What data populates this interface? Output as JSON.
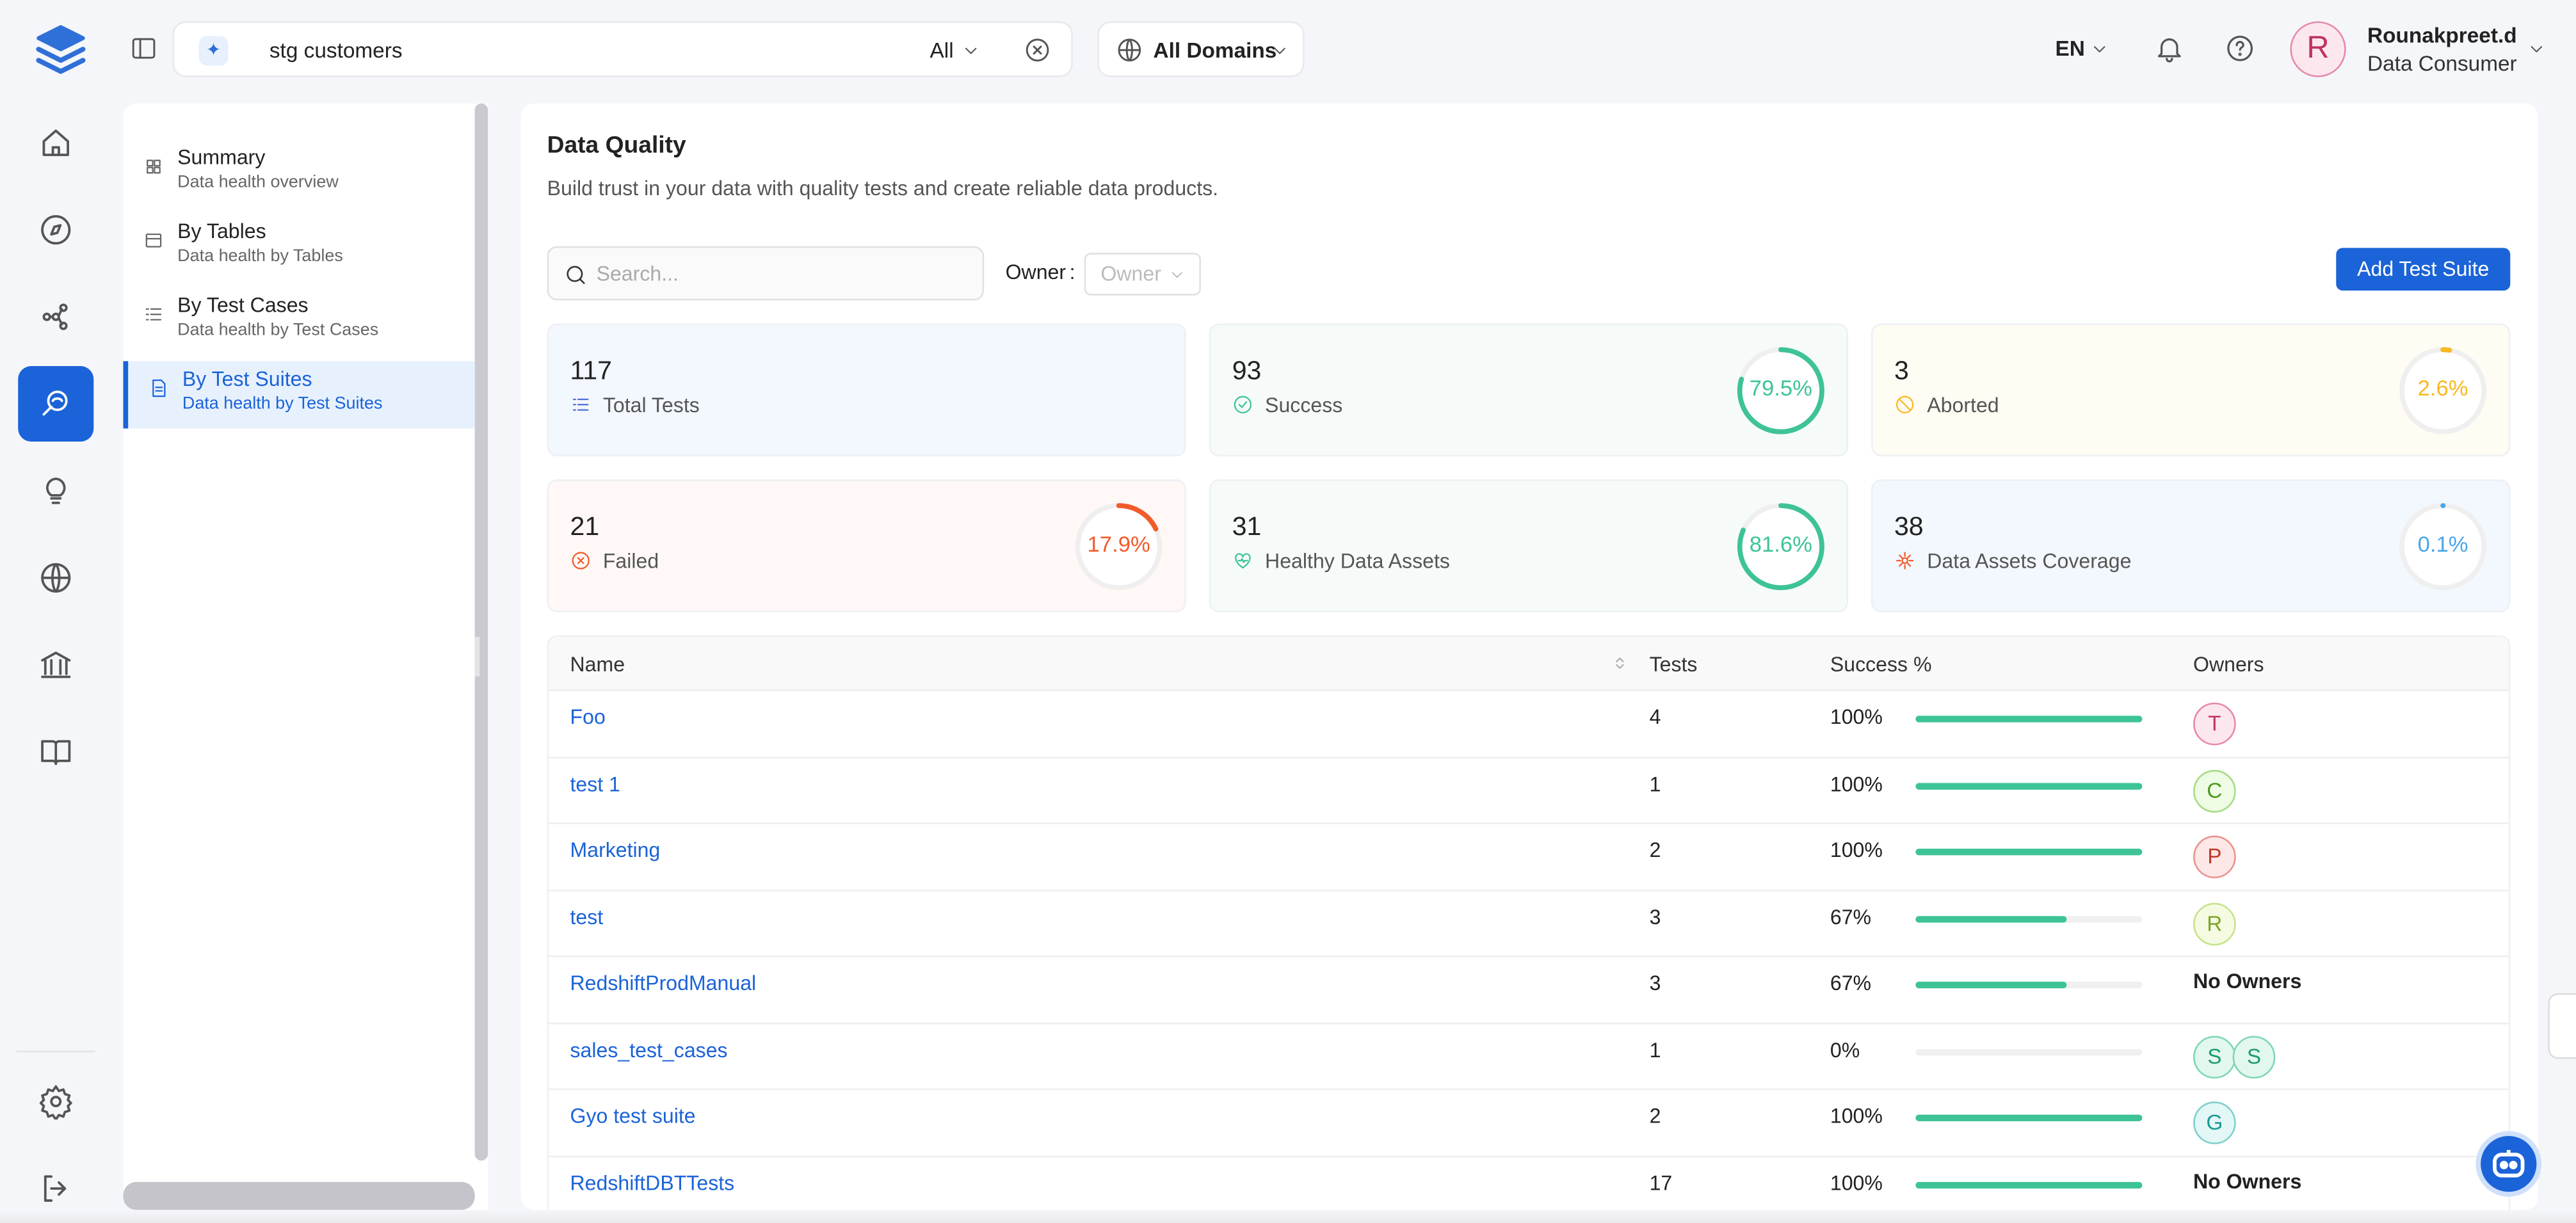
{
  "header": {
    "search": "stg customers",
    "filter": "All",
    "domain": "All Domains",
    "lang": "EN",
    "user": {
      "initial": "R",
      "name": "Rounakpreet.d",
      "role": "Data Consumer"
    }
  },
  "sidebar": [
    {
      "title": "Summary",
      "subtitle": "Data health overview"
    },
    {
      "title": "By Tables",
      "subtitle": "Data health by Tables"
    },
    {
      "title": "By Test Cases",
      "subtitle": "Data health by Test Cases"
    },
    {
      "title": "By Test Suites",
      "subtitle": "Data health by Test Suites"
    }
  ],
  "page": {
    "title": "Data Quality",
    "description": "Build trust in your data with quality tests and create reliable data products.",
    "search_placeholder": "Search...",
    "owner_label": "Owner",
    "owner_placeholder": "Owner",
    "add_button": "Add Test Suite"
  },
  "stats": [
    {
      "value": 117,
      "label": "Total Tests"
    },
    {
      "value": 93,
      "label": "Success",
      "percent": 79.5,
      "percent_label": "79.5%"
    },
    {
      "value": 3,
      "label": "Aborted",
      "percent": 2.6,
      "percent_label": "2.6%"
    },
    {
      "value": 21,
      "label": "Failed",
      "percent": 17.9,
      "percent_label": "17.9%"
    },
    {
      "value": 31,
      "label": "Healthy Data Assets",
      "percent": 81.6,
      "percent_label": "81.6%"
    },
    {
      "value": 38,
      "label": "Data Assets Coverage",
      "percent": 0.1,
      "percent_label": "0.1%"
    }
  ],
  "table": {
    "columns": [
      "Name",
      "Tests",
      "Success %",
      "Owners"
    ],
    "rows": [
      {
        "name": "Foo",
        "tests": 4,
        "success": 100,
        "success_label": "100%",
        "owners": [
          "T"
        ]
      },
      {
        "name": "test 1",
        "tests": 1,
        "success": 100,
        "success_label": "100%",
        "owners": [
          "C"
        ]
      },
      {
        "name": "Marketing",
        "tests": 2,
        "success": 100,
        "success_label": "100%",
        "owners": [
          "P"
        ]
      },
      {
        "name": "test",
        "tests": 3,
        "success": 67,
        "success_label": "67%",
        "owners": [
          "R"
        ]
      },
      {
        "name": "RedshiftProdManual",
        "tests": 3,
        "success": 67,
        "success_label": "67%",
        "owners_label": "No Owners"
      },
      {
        "name": "sales_test_cases",
        "tests": 1,
        "success": 0,
        "success_label": "0%",
        "owners": [
          "S",
          "S"
        ]
      },
      {
        "name": "Gyo test suite",
        "tests": 2,
        "success": 100,
        "success_label": "100%",
        "owners": [
          "G"
        ]
      },
      {
        "name": "RedshiftDBTTests",
        "tests": 17,
        "success": 100,
        "success_label": "100%",
        "owners_label": "No Owners"
      }
    ]
  }
}
